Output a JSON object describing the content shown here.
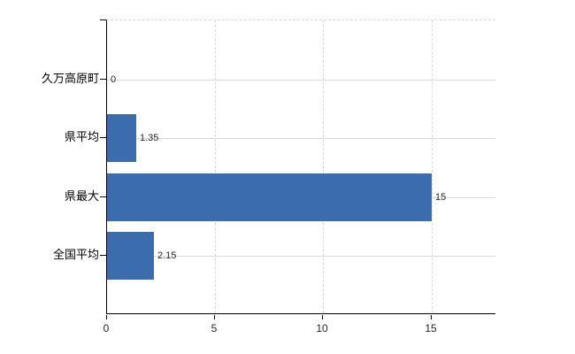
{
  "chart_data": {
    "type": "bar",
    "orientation": "horizontal",
    "title": "",
    "xlabel": "",
    "ylabel": "",
    "categories": [
      "久万高原町",
      "県平均",
      "県最大",
      "全国平均"
    ],
    "values": [
      0,
      1.35,
      15,
      2.15
    ],
    "value_labels": [
      "0",
      "1.35",
      "15",
      "2.15"
    ],
    "x_ticks": [
      0,
      5,
      10,
      15
    ],
    "x_tick_labels": [
      "0",
      "5",
      "10",
      "15"
    ],
    "xlim": [
      0,
      18
    ],
    "grid": true,
    "legend": "none",
    "bar_color": "#3b6cae"
  },
  "colors": {
    "bar": "#3b6cae",
    "axis": "#000000",
    "gridline": "#d9d9d9",
    "text": "#262626",
    "background": "#ffffff"
  }
}
